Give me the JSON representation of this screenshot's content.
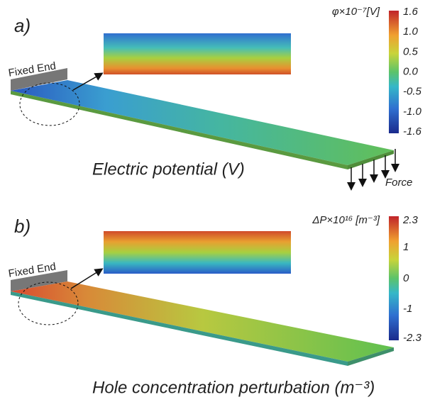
{
  "panels": [
    {
      "label": "a)",
      "fixed_end": "Fixed End",
      "caption": "Electric potential (V)",
      "force": "Force",
      "colorbar": {
        "title": "φ×10⁻⁷[V]",
        "ticks": [
          "1.6",
          "1.0",
          "0.5",
          "0.0",
          "-0.5",
          "-1.0",
          "-1.6"
        ]
      }
    },
    {
      "label": "b)",
      "fixed_end": "Fixed End",
      "caption": "Hole concentration perturbation (m⁻³)",
      "colorbar": {
        "title": "ΔP×10¹⁶ [m⁻³]",
        "ticks": [
          "2.3",
          "1",
          "0",
          "-1",
          "-2.3"
        ]
      }
    }
  ]
}
